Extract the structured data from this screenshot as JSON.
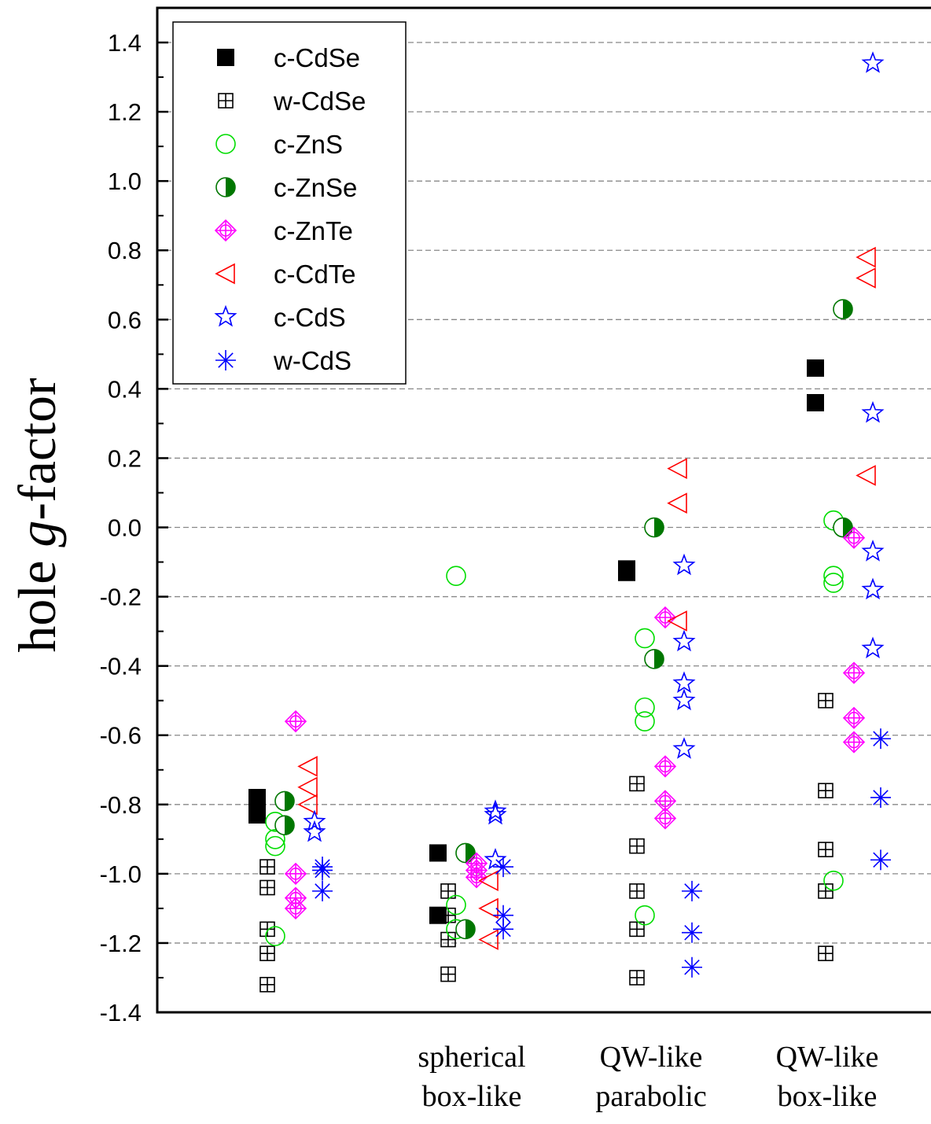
{
  "chart_data": {
    "type": "scatter",
    "title": "",
    "ylabel": "hole g-factor",
    "ylabel_prefix": "hole ",
    "ylabel_italic": "g",
    "ylabel_suffix": "-factor",
    "ylim": [
      -1.4,
      1.5
    ],
    "yticks": [
      -1.4,
      -1.2,
      -1.0,
      -0.8,
      -0.6,
      -0.4,
      -0.2,
      0.0,
      0.2,
      0.4,
      0.6,
      0.8,
      1.0,
      1.2,
      1.4
    ],
    "ytick_labels": [
      "-1.4",
      "-1.2",
      "-1.0",
      "-0.8",
      "-0.6",
      "-0.4",
      "-0.2",
      "0.0",
      "0.2",
      "0.4",
      "0.6",
      "0.8",
      "1.0",
      "1.2",
      "1.4"
    ],
    "grid": "horizontal dashed",
    "legend_position": "top-left",
    "categories": [
      {
        "lines": []
      },
      {
        "lines": [
          "spherical",
          "box-like"
        ]
      },
      {
        "lines": [
          "QW-like",
          "parabolic"
        ]
      },
      {
        "lines": [
          "QW-like",
          "box-like"
        ]
      }
    ],
    "series": [
      {
        "name": "c-CdSe",
        "marker": "filled-square",
        "color": "#000000",
        "points": [
          [
            0,
            -0.78
          ],
          [
            0,
            -0.81
          ],
          [
            0,
            -0.83
          ],
          [
            1,
            -0.94
          ],
          [
            1,
            -1.12
          ],
          [
            2,
            -0.12
          ],
          [
            2,
            -0.13
          ],
          [
            3,
            0.46
          ],
          [
            3,
            0.36
          ]
        ]
      },
      {
        "name": "w-CdSe",
        "marker": "crossed-square",
        "color": "#000000",
        "points": [
          [
            0,
            -0.98
          ],
          [
            0,
            -1.04
          ],
          [
            0,
            -1.16
          ],
          [
            0,
            -1.23
          ],
          [
            0,
            -1.32
          ],
          [
            1,
            -1.05
          ],
          [
            1,
            -1.12
          ],
          [
            1,
            -1.19
          ],
          [
            1,
            -1.29
          ],
          [
            2,
            -0.74
          ],
          [
            2,
            -0.92
          ],
          [
            2,
            -1.05
          ],
          [
            2,
            -1.16
          ],
          [
            2,
            -1.3
          ],
          [
            3,
            -0.5
          ],
          [
            3,
            -0.76
          ],
          [
            3,
            -0.93
          ],
          [
            3,
            -1.05
          ],
          [
            3,
            -1.23
          ]
        ]
      },
      {
        "name": "c-ZnS",
        "marker": "open-circle",
        "color": "#00dd00",
        "points": [
          [
            0,
            -0.85
          ],
          [
            0,
            -0.9
          ],
          [
            0,
            -0.92
          ],
          [
            0,
            -1.18
          ],
          [
            1,
            -0.14
          ],
          [
            1,
            -1.09
          ],
          [
            1,
            -1.16
          ],
          [
            2,
            -0.32
          ],
          [
            2,
            -0.52
          ],
          [
            2,
            -0.56
          ],
          [
            2,
            -1.12
          ],
          [
            3,
            0.02
          ],
          [
            3,
            -0.14
          ],
          [
            3,
            -0.16
          ],
          [
            3,
            -1.02
          ]
        ]
      },
      {
        "name": "c-ZnSe",
        "marker": "half-circle",
        "color": "#007700",
        "points": [
          [
            0,
            -0.79
          ],
          [
            0,
            -0.86
          ],
          [
            1,
            -0.94
          ],
          [
            1,
            -1.16
          ],
          [
            2,
            0.0
          ],
          [
            2,
            -0.38
          ],
          [
            3,
            0.63
          ],
          [
            3,
            0.0
          ]
        ]
      },
      {
        "name": "c-ZnTe",
        "marker": "crossed-diamond",
        "color": "#ff00ff",
        "points": [
          [
            0,
            -0.56
          ],
          [
            0,
            -1.0
          ],
          [
            0,
            -1.07
          ],
          [
            0,
            -1.1
          ],
          [
            1,
            -0.97
          ],
          [
            1,
            -0.99
          ],
          [
            1,
            -1.01
          ],
          [
            2,
            -0.26
          ],
          [
            2,
            -0.69
          ],
          [
            2,
            -0.79
          ],
          [
            2,
            -0.84
          ],
          [
            3,
            -0.03
          ],
          [
            3,
            -0.42
          ],
          [
            3,
            -0.55
          ],
          [
            3,
            -0.62
          ]
        ]
      },
      {
        "name": "c-CdTe",
        "marker": "left-triangle",
        "color": "#ff0000",
        "points": [
          [
            0,
            -0.69
          ],
          [
            0,
            -0.75
          ],
          [
            0,
            -0.8
          ],
          [
            1,
            -1.02
          ],
          [
            1,
            -1.1
          ],
          [
            1,
            -1.19
          ],
          [
            2,
            0.17
          ],
          [
            2,
            0.07
          ],
          [
            2,
            -0.27
          ],
          [
            3,
            0.78
          ],
          [
            3,
            0.72
          ],
          [
            3,
            0.15
          ]
        ]
      },
      {
        "name": "c-CdS",
        "marker": "open-star",
        "color": "#0000ff",
        "points": [
          [
            0,
            -0.85
          ],
          [
            0,
            -0.88
          ],
          [
            1,
            -0.82
          ],
          [
            1,
            -0.83
          ],
          [
            1,
            -0.96
          ],
          [
            2,
            -0.11
          ],
          [
            2,
            -0.33
          ],
          [
            2,
            -0.45
          ],
          [
            2,
            -0.5
          ],
          [
            2,
            -0.64
          ],
          [
            3,
            1.34
          ],
          [
            3,
            0.33
          ],
          [
            3,
            -0.07
          ],
          [
            3,
            -0.18
          ],
          [
            3,
            -0.35
          ]
        ]
      },
      {
        "name": "w-CdS",
        "marker": "asterisk",
        "color": "#0000ff",
        "points": [
          [
            0,
            -0.98
          ],
          [
            0,
            -0.99
          ],
          [
            0,
            -1.05
          ],
          [
            1,
            -0.98
          ],
          [
            1,
            -1.12
          ],
          [
            1,
            -1.16
          ],
          [
            2,
            -1.05
          ],
          [
            2,
            -1.17
          ],
          [
            2,
            -1.27
          ],
          [
            3,
            -0.61
          ],
          [
            3,
            -0.78
          ],
          [
            3,
            -0.96
          ]
        ]
      }
    ]
  }
}
